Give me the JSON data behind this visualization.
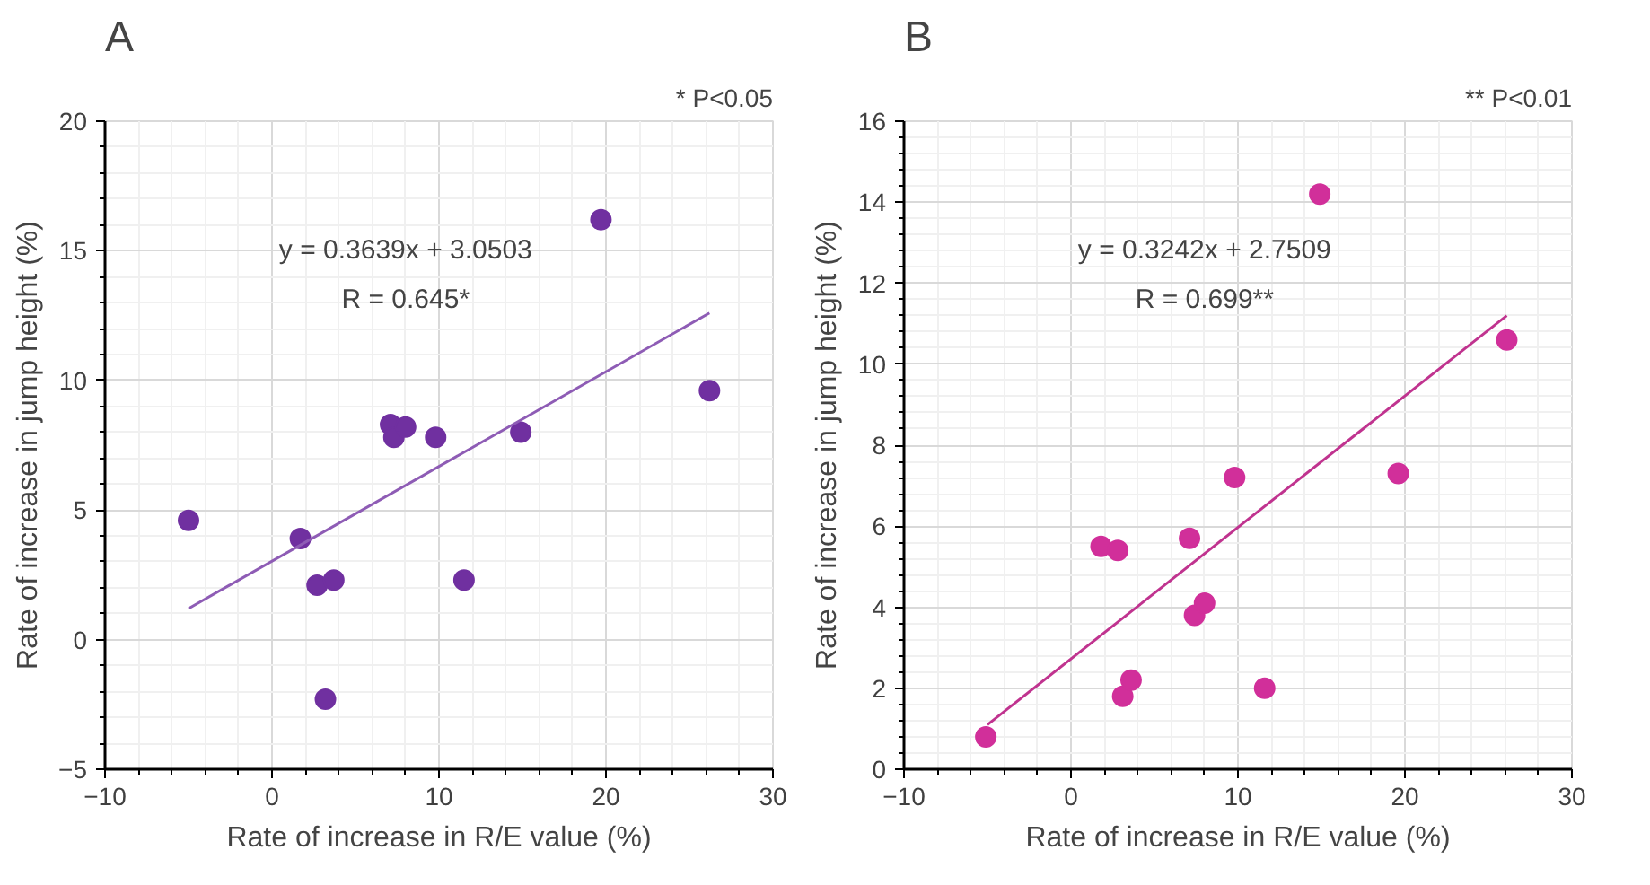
{
  "chart_data": [
    {
      "type": "scatter",
      "title": "A",
      "xlabel": "Rate of increase in R/E value (%)",
      "ylabel": "Rate of increase in jump height (%)",
      "annotations": [
        "* P<0.05",
        "y = 0.3639x + 3.0503",
        "R = 0.645*"
      ],
      "xlim": [
        -10,
        30
      ],
      "xticks": [
        -10,
        0,
        10,
        20,
        30
      ],
      "ylim": [
        -5,
        20
      ],
      "yticks": [
        -5,
        0,
        5,
        10,
        15,
        20
      ],
      "grid": true,
      "marker": "circle",
      "series": [
        {
          "color": "#7030a0",
          "x": [
            -5.0,
            1.7,
            2.7,
            3.7,
            3.2,
            7.1,
            7.3,
            8.0,
            9.8,
            11.5,
            14.9,
            19.7,
            26.2
          ],
          "values": [
            4.6,
            3.9,
            2.1,
            2.3,
            -2.3,
            8.3,
            7.8,
            8.2,
            7.8,
            2.3,
            8.0,
            16.2,
            9.6
          ]
        },
        {
          "type": "line",
          "color": "#8e5cb5",
          "x": [
            -5.0,
            26.2
          ],
          "values": [
            1.2,
            12.6
          ],
          "marker": "none"
        }
      ]
    },
    {
      "type": "scatter",
      "title": "B",
      "xlabel": "Rate of increase in R/E value (%)",
      "ylabel": "Rate of increase in jump height (%)",
      "annotations": [
        "** P<0.01",
        "y = 0.3242x + 2.7509",
        "R = 0.699**"
      ],
      "xlim": [
        -10,
        30
      ],
      "xticks": [
        -10,
        0,
        10,
        20,
        30
      ],
      "ylim": [
        0,
        16
      ],
      "yticks": [
        0,
        2,
        4,
        6,
        8,
        10,
        12,
        14,
        16
      ],
      "grid": true,
      "marker": "circle",
      "series": [
        {
          "color": "#d12f9a",
          "x": [
            -5.1,
            1.8,
            2.8,
            3.1,
            3.6,
            7.1,
            7.4,
            8.0,
            9.8,
            11.6,
            14.9,
            19.6,
            26.1
          ],
          "values": [
            0.8,
            5.5,
            5.4,
            1.8,
            2.2,
            5.7,
            3.8,
            4.1,
            7.2,
            2.0,
            14.2,
            7.3,
            10.6
          ]
        },
        {
          "type": "line",
          "color": "#c0338f",
          "x": [
            -5.0,
            26.1
          ],
          "values": [
            1.1,
            11.2
          ],
          "marker": "none"
        }
      ]
    }
  ]
}
